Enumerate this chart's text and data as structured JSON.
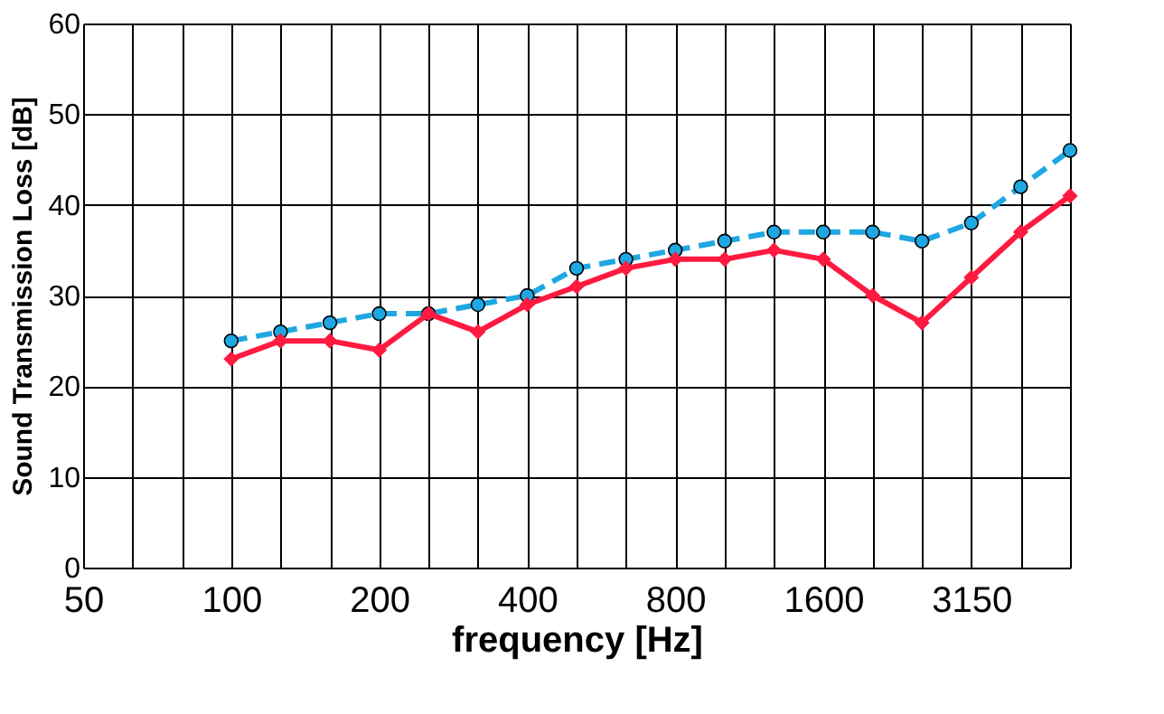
{
  "chart_data": {
    "type": "line",
    "xlabel": "frequency [Hz]",
    "ylabel": "Sound Transmission Loss [dB]",
    "categories": [
      "50",
      null,
      null,
      "100",
      null,
      null,
      "200",
      null,
      null,
      "400",
      null,
      null,
      "800",
      null,
      null,
      "1600",
      null,
      null,
      "3150",
      null,
      null
    ],
    "series": [
      {
        "color": "#1ea7e1",
        "line_style": "dashed",
        "marker": "circle",
        "values": [
          null,
          null,
          null,
          25,
          26,
          27,
          28,
          28,
          29,
          30,
          33,
          34,
          35,
          36,
          37,
          37,
          37,
          36,
          38,
          42,
          46
        ]
      },
      {
        "color": "#ff1a40",
        "line_style": "solid",
        "marker": "diamond",
        "values": [
          null,
          null,
          null,
          23,
          25,
          25,
          24,
          28,
          26,
          29,
          31,
          33,
          34,
          34,
          35,
          34,
          30,
          27,
          32,
          37,
          41
        ]
      }
    ],
    "ylim": [
      0,
      60
    ],
    "yticks": [
      0,
      10,
      20,
      30,
      40,
      50,
      60
    ],
    "grid": true
  }
}
